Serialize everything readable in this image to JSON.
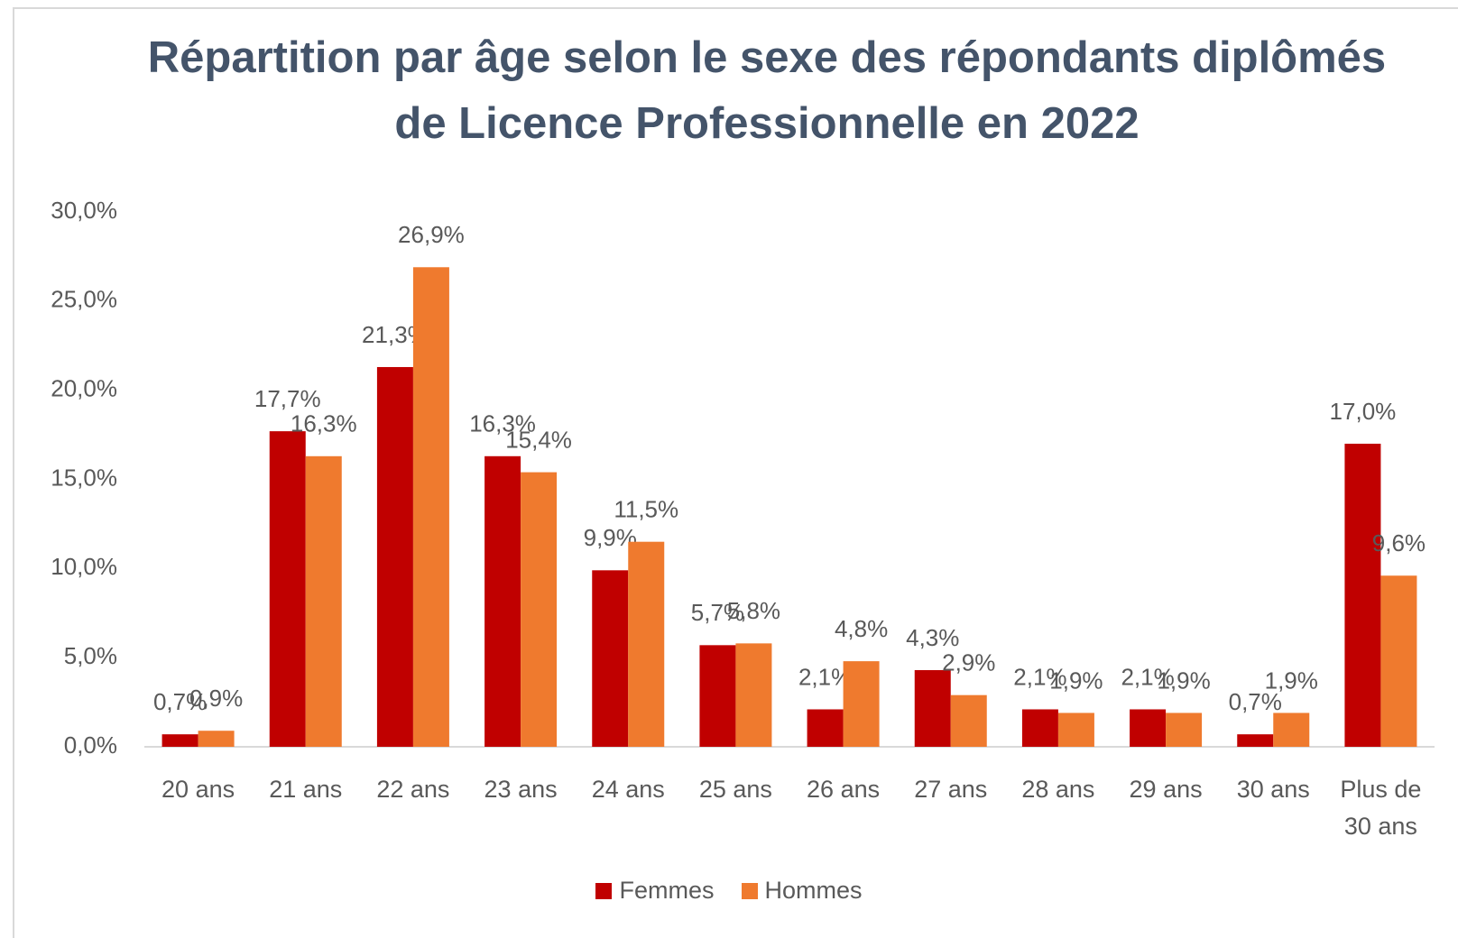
{
  "chart_data": {
    "type": "bar",
    "title": "Répartition par âge selon le sexe des répondants diplômés de Licence Professionnelle en 2022",
    "categories": [
      "20 ans",
      "21 ans",
      "22 ans",
      "23 ans",
      "24 ans",
      "25 ans",
      "26 ans",
      "27 ans",
      "28 ans",
      "29 ans",
      "30 ans",
      "Plus de 30 ans"
    ],
    "series": [
      {
        "name": "Femmes",
        "color": "#c00000",
        "values": [
          0.7,
          17.7,
          21.3,
          16.3,
          9.9,
          5.7,
          2.1,
          4.3,
          2.1,
          2.1,
          0.7,
          17.0
        ],
        "value_labels": [
          "0,7%",
          "17,7%",
          "21,3%",
          "16,3%",
          "9,9%",
          "5,7%",
          "2,1%",
          "4,3%",
          "2,1%",
          "2,1%",
          "0,7%",
          "17,0%"
        ]
      },
      {
        "name": "Hommes",
        "color": "#ef7a2e",
        "values": [
          0.9,
          16.3,
          26.9,
          15.4,
          11.5,
          5.8,
          4.8,
          2.9,
          1.9,
          1.9,
          1.9,
          9.6
        ],
        "value_labels": [
          "0,9%",
          "16,3%",
          "26,9%",
          "15,4%",
          "11,5%",
          "5,8%",
          "4,8%",
          "2,9%",
          "1,9%",
          "1,9%",
          "1,9%",
          "9,6%"
        ]
      }
    ],
    "ylim": [
      0,
      30
    ],
    "yticks": [
      {
        "value": 0,
        "label": "0,0%"
      },
      {
        "value": 5,
        "label": "5,0%"
      },
      {
        "value": 10,
        "label": "10,0%"
      },
      {
        "value": 15,
        "label": "15,0%"
      },
      {
        "value": 20,
        "label": "20,0%"
      },
      {
        "value": 25,
        "label": "25,0%"
      },
      {
        "value": 30,
        "label": "30,0%"
      }
    ],
    "grid": false,
    "legend": "bottom"
  }
}
